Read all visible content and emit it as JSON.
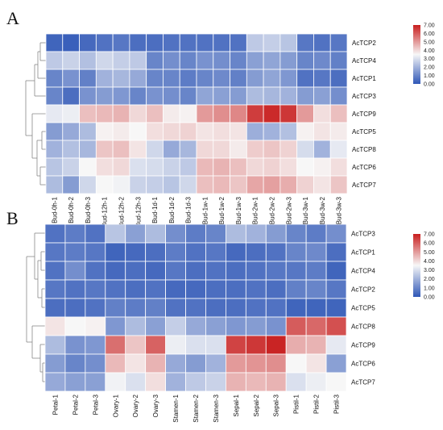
{
  "colors": {
    "low": "#2f57b7",
    "mid": "#f7f7f7",
    "high": "#c81e1e"
  },
  "chart_data": [
    {
      "type": "heatmap",
      "panel": "A",
      "rows": [
        "AcTCP2",
        "AcTCP4",
        "AcTCP1",
        "AcTCP3",
        "AcTCP9",
        "AcTCP5",
        "AcTCP8",
        "AcTCP6",
        "AcTCP7"
      ],
      "columns": [
        "Bud-0h-1",
        "Bud-0h-2",
        "Bud-0h-3",
        "Bud-12h-1",
        "Bud-12h-2",
        "Bud-12h-3",
        "Bud-1d-1",
        "Bud-1d-2",
        "Bud-1d-3",
        "Bud-1w-1",
        "Bud-1w-2",
        "Bud-1w-3",
        "Bud-2w-1",
        "Bud-2w-2",
        "Bud-2w-3",
        "Bud-3w-1",
        "Bud-3w-2",
        "Bud-3w-3"
      ],
      "values": [
        [
          0.3,
          0.2,
          0.4,
          0.6,
          0.7,
          0.5,
          0.5,
          0.6,
          0.6,
          0.6,
          0.6,
          0.6,
          2.5,
          2.6,
          2.4,
          0.7,
          0.6,
          0.7
        ],
        [
          2.5,
          2.7,
          2.3,
          2.8,
          2.6,
          2.5,
          1.0,
          1.2,
          1.0,
          1.3,
          1.2,
          1.0,
          1.6,
          1.7,
          1.5,
          1.0,
          1.1,
          0.9
        ],
        [
          1.0,
          1.3,
          0.9,
          2.0,
          2.1,
          1.8,
          1.0,
          1.0,
          0.8,
          1.0,
          1.1,
          0.9,
          1.5,
          1.7,
          1.4,
          0.6,
          0.7,
          0.5
        ],
        [
          1.0,
          0.5,
          1.3,
          1.5,
          1.4,
          1.0,
          1.3,
          1.2,
          1.0,
          1.7,
          1.6,
          1.5,
          2.2,
          2.1,
          2.0,
          1.5,
          1.6,
          1.2
        ],
        [
          3.2,
          3.3,
          4.4,
          4.5,
          4.6,
          4.0,
          4.4,
          3.7,
          3.6,
          5.0,
          5.2,
          5.3,
          6.5,
          6.8,
          6.6,
          5.0,
          3.9,
          4.4
        ],
        [
          1.5,
          1.8,
          2.2,
          3.6,
          3.7,
          3.5,
          3.9,
          4.0,
          4.1,
          3.8,
          3.9,
          3.8,
          1.9,
          2.0,
          2.3,
          3.6,
          3.8,
          3.7
        ],
        [
          2.0,
          2.3,
          2.1,
          4.3,
          4.4,
          3.8,
          2.8,
          1.8,
          2.1,
          4.0,
          4.0,
          3.7,
          4.2,
          4.3,
          4.1,
          2.9,
          2.0,
          3.2
        ],
        [
          2.4,
          2.7,
          3.5,
          3.9,
          4.0,
          3.0,
          2.9,
          2.7,
          2.5,
          4.5,
          4.6,
          4.4,
          4.0,
          4.1,
          3.9,
          3.5,
          3.6,
          3.9
        ],
        [
          2.2,
          1.5,
          2.8,
          3.5,
          3.4,
          2.7,
          2.6,
          2.4,
          2.8,
          4.4,
          4.5,
          4.3,
          4.8,
          4.9,
          4.7,
          4.1,
          3.8,
          4.3
        ]
      ],
      "legend": {
        "min": 0.0,
        "max": 7.0,
        "ticks": [
          "7.00",
          "6.00",
          "5.00",
          "4.00",
          "3.00",
          "2.00",
          "1.00",
          "0.00"
        ]
      }
    },
    {
      "type": "heatmap",
      "panel": "B",
      "rows": [
        "AcTCP3",
        "AcTCP1",
        "AcTCP4",
        "AcTCP2",
        "AcTCP5",
        "AcTCP8",
        "AcTCP9",
        "AcTCP6",
        "AcTCP7"
      ],
      "columns": [
        "Petal-1",
        "Petal-2",
        "Petal-3",
        "Ovary-1",
        "Ovary-2",
        "Ovary-3",
        "Stamen-1",
        "Stamen-2",
        "Stamen-3",
        "Sepal-1",
        "Sepal-2",
        "Sepal-3",
        "Pistil-1",
        "Pistil-2",
        "Pistil-3"
      ],
      "values": [
        [
          0.6,
          0.8,
          0.6,
          2.4,
          1.6,
          2.2,
          1.2,
          0.8,
          1.0,
          2.2,
          2.0,
          1.5,
          1.0,
          0.8,
          1.2
        ],
        [
          0.7,
          0.8,
          0.7,
          0.3,
          0.4,
          0.5,
          0.8,
          0.6,
          0.7,
          0.4,
          0.5,
          0.6,
          1.0,
          1.1,
          0.5
        ],
        [
          0.6,
          1.2,
          0.6,
          0.4,
          0.5,
          0.4,
          0.7,
          0.5,
          0.6,
          0.5,
          0.6,
          0.7,
          0.7,
          0.8,
          0.3
        ],
        [
          0.7,
          0.6,
          0.7,
          0.6,
          0.5,
          0.6,
          0.4,
          0.4,
          0.5,
          0.5,
          0.6,
          0.5,
          0.9,
          1.0,
          0.7
        ],
        [
          0.5,
          0.5,
          0.6,
          0.9,
          0.8,
          0.9,
          0.6,
          0.6,
          0.5,
          0.5,
          0.6,
          0.6,
          0.3,
          0.3,
          0.3
        ],
        [
          3.8,
          3.5,
          3.6,
          1.4,
          2.2,
          1.6,
          2.6,
          1.8,
          1.6,
          1.4,
          1.5,
          1.3,
          6.0,
          5.8,
          6.2
        ],
        [
          2.2,
          1.3,
          1.4,
          5.7,
          4.3,
          5.9,
          3.3,
          3.0,
          3.0,
          6.4,
          6.6,
          6.9,
          4.7,
          4.6,
          3.2
        ],
        [
          1.5,
          1.0,
          1.2,
          4.5,
          3.8,
          4.6,
          1.8,
          1.5,
          2.0,
          5.0,
          5.1,
          5.2,
          3.5,
          3.8,
          1.6
        ],
        [
          1.8,
          1.6,
          1.6,
          3.4,
          3.0,
          3.9,
          2.0,
          2.5,
          2.7,
          4.6,
          4.5,
          4.6,
          3.0,
          3.3,
          3.5
        ]
      ],
      "legend": {
        "min": 0.0,
        "max": 7.0,
        "ticks": [
          "7.00",
          "6.00",
          "5.00",
          "4.00",
          "3.00",
          "2.00",
          "1.00",
          "0.00"
        ]
      }
    }
  ]
}
